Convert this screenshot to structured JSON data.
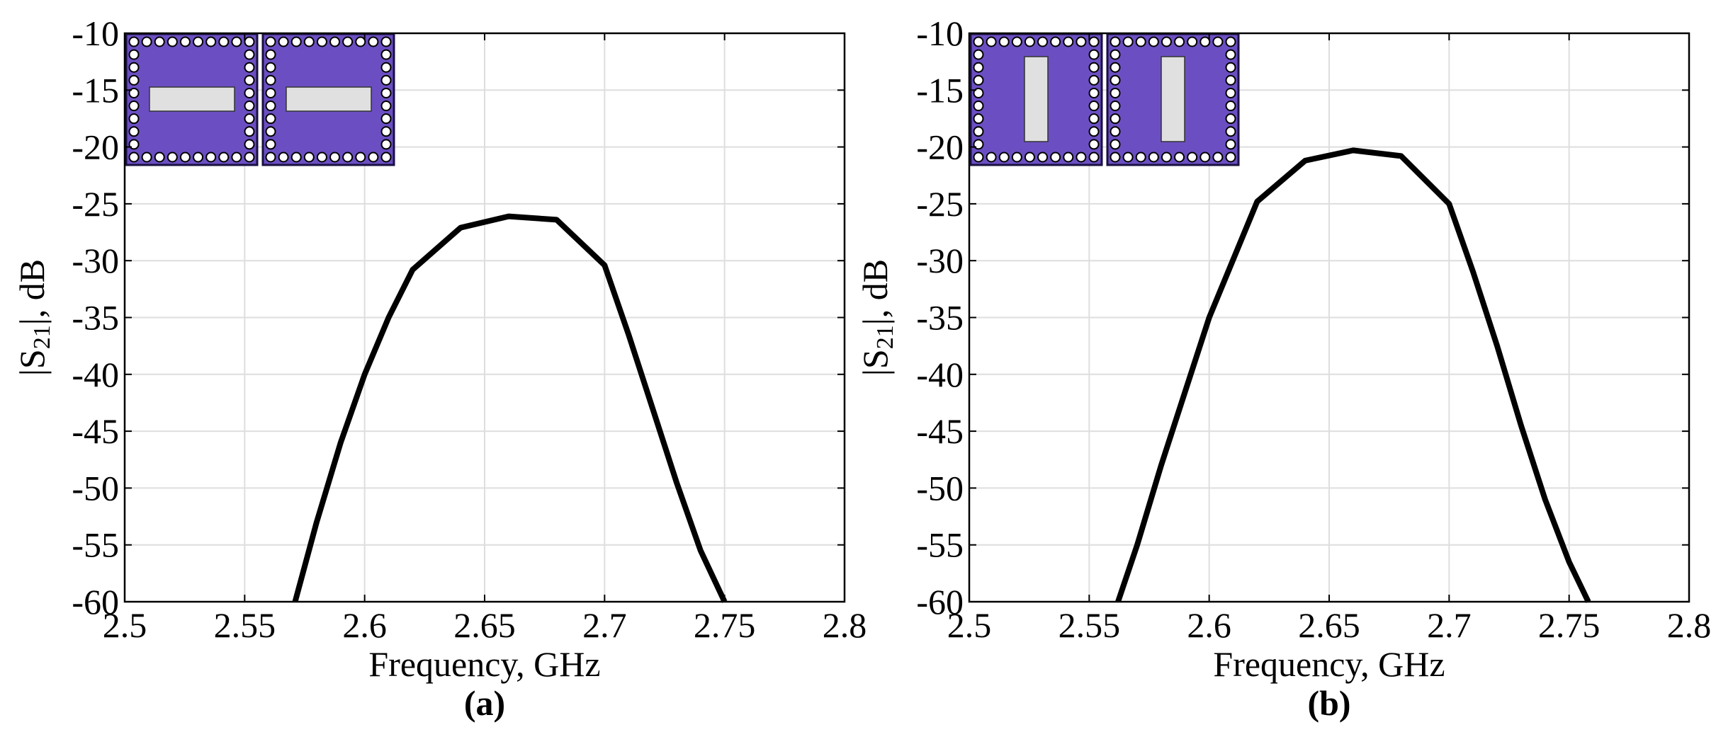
{
  "colors": {
    "curve": "#000000",
    "grid": "#dedede",
    "axes": "#000000",
    "inset_fill": "#6b4fc2",
    "inset_slot": "#e0e0e0"
  },
  "chart_data": [
    {
      "type": "line",
      "panel_label": "(a)",
      "xlabel": "Frequency, GHz",
      "ylabel_prefix": "|S",
      "ylabel_subscript": "21",
      "ylabel_suffix": "|, dB",
      "xlim": [
        2.5,
        2.8
      ],
      "ylim": [
        -60,
        -10
      ],
      "xticks": [
        "2.5",
        "2.55",
        "2.6",
        "2.65",
        "2.7",
        "2.75",
        "2.8"
      ],
      "yticks": [
        "-10",
        "-15",
        "-20",
        "-25",
        "-30",
        "-35",
        "-40",
        "-45",
        "-50",
        "-55",
        "-60"
      ],
      "grid": true,
      "inset": {
        "count": 2,
        "slot_orientation": "horizontal"
      },
      "series": [
        {
          "x": [
            2.571,
            2.58,
            2.59,
            2.6,
            2.61,
            2.62,
            2.64,
            2.66,
            2.68,
            2.7,
            2.71,
            2.72,
            2.73,
            2.74,
            2.75
          ],
          "y": [
            -60,
            -53,
            -46,
            -40,
            -35,
            -30.8,
            -27.1,
            -26.1,
            -26.4,
            -30.4,
            -36.5,
            -43,
            -49.5,
            -55.5,
            -60
          ]
        }
      ]
    },
    {
      "type": "line",
      "panel_label": "(b)",
      "xlabel": "Frequency, GHz",
      "ylabel_prefix": "|S",
      "ylabel_subscript": "21",
      "ylabel_suffix": "|, dB",
      "xlim": [
        2.5,
        2.8
      ],
      "ylim": [
        -60,
        -10
      ],
      "xticks": [
        "2.5",
        "2.55",
        "2.6",
        "2.65",
        "2.7",
        "2.75",
        "2.8"
      ],
      "yticks": [
        "-10",
        "-15",
        "-20",
        "-25",
        "-30",
        "-35",
        "-40",
        "-45",
        "-50",
        "-55",
        "-60"
      ],
      "grid": true,
      "inset": {
        "count": 2,
        "slot_orientation": "vertical"
      },
      "series": [
        {
          "x": [
            2.562,
            2.57,
            2.58,
            2.59,
            2.6,
            2.62,
            2.64,
            2.66,
            2.68,
            2.7,
            2.71,
            2.72,
            2.73,
            2.74,
            2.75,
            2.758
          ],
          "y": [
            -60,
            -55,
            -48,
            -41.5,
            -35,
            -24.8,
            -21.2,
            -20.3,
            -20.8,
            -25,
            -31,
            -37.5,
            -44.5,
            -51,
            -56.5,
            -60
          ]
        }
      ]
    }
  ]
}
